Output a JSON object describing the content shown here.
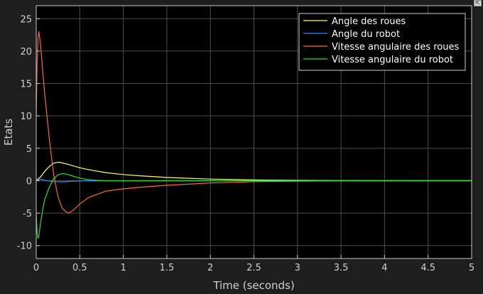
{
  "ui": {
    "undock_glyph": "⇱",
    "colors": {
      "figure_background": "#1e1e1e",
      "axes_background": "#000000",
      "grid": "#4d4d4d",
      "axis_line": "#c8c8c8",
      "text": "#d0d0d0"
    }
  },
  "chart_data": {
    "type": "line",
    "title": "",
    "xlabel": "Time (seconds)",
    "ylabel": "Etats",
    "xlim": [
      0,
      5
    ],
    "ylim": [
      -12,
      27
    ],
    "xticks": [
      0,
      0.5,
      1,
      1.5,
      2,
      2.5,
      3,
      3.5,
      4,
      4.5,
      5
    ],
    "xtick_labels": [
      "0",
      "0.5",
      "1",
      "1.5",
      "2",
      "2.5",
      "3",
      "3.5",
      "4",
      "4.5",
      "5"
    ],
    "yticks": [
      -10,
      -5,
      0,
      5,
      10,
      15,
      20,
      25
    ],
    "ytick_labels": [
      "-10",
      "-5",
      "0",
      "5",
      "10",
      "15",
      "20",
      "25"
    ],
    "grid": true,
    "legend_position": "top-right",
    "series": [
      {
        "name": "Angle des roues",
        "color": "#ffff66",
        "x": [
          0,
          0.05,
          0.1,
          0.15,
          0.2,
          0.25,
          0.3,
          0.4,
          0.5,
          0.6,
          0.8,
          1.0,
          1.2,
          1.5,
          2.0,
          2.5,
          3.0,
          3.5,
          4.0,
          5.0
        ],
        "y": [
          0,
          0.6,
          1.5,
          2.2,
          2.7,
          2.85,
          2.75,
          2.4,
          2.0,
          1.7,
          1.25,
          0.95,
          0.75,
          0.5,
          0.25,
          0.12,
          0.06,
          0.03,
          0.015,
          0.005
        ]
      },
      {
        "name": "Angle du robot",
        "color": "#1e90ff",
        "x": [
          0,
          0.05,
          0.1,
          0.2,
          0.3,
          0.4,
          0.5,
          0.6,
          0.8,
          1.0,
          2.0,
          5.0
        ],
        "y": [
          0,
          0.25,
          0.05,
          -0.15,
          -0.18,
          -0.1,
          -0.05,
          -0.02,
          0,
          0,
          0,
          0
        ]
      },
      {
        "name": "Vitesse angulaire des roues",
        "color": "#ff6a2e",
        "x": [
          0,
          0.01,
          0.02,
          0.03,
          0.05,
          0.08,
          0.1,
          0.15,
          0.2,
          0.25,
          0.3,
          0.35,
          0.38,
          0.42,
          0.5,
          0.6,
          0.8,
          1.0,
          1.2,
          1.5,
          2.0,
          2.5,
          3.0,
          3.5,
          4.0,
          5.0
        ],
        "y": [
          10,
          18,
          22,
          23,
          21,
          16,
          13,
          6.5,
          1.0,
          -2.5,
          -4.3,
          -4.9,
          -4.95,
          -4.6,
          -3.6,
          -2.6,
          -1.6,
          -1.25,
          -1.0,
          -0.7,
          -0.35,
          -0.15,
          -0.07,
          -0.03,
          -0.015,
          -0.005
        ]
      },
      {
        "name": "Vitesse angulaire du robot",
        "color": "#33dd33",
        "x": [
          0,
          0.01,
          0.02,
          0.03,
          0.05,
          0.08,
          0.1,
          0.15,
          0.2,
          0.25,
          0.3,
          0.35,
          0.4,
          0.5,
          0.6,
          0.7,
          0.8,
          1.0,
          1.5,
          2.0,
          3.0,
          5.0
        ],
        "y": [
          -5,
          -8.0,
          -8.9,
          -8.5,
          -6.5,
          -4.0,
          -2.8,
          -1.0,
          0.3,
          0.9,
          1.1,
          1.0,
          0.8,
          0.4,
          0.15,
          0.05,
          0.0,
          -0.02,
          0,
          0,
          0,
          0
        ]
      }
    ]
  }
}
